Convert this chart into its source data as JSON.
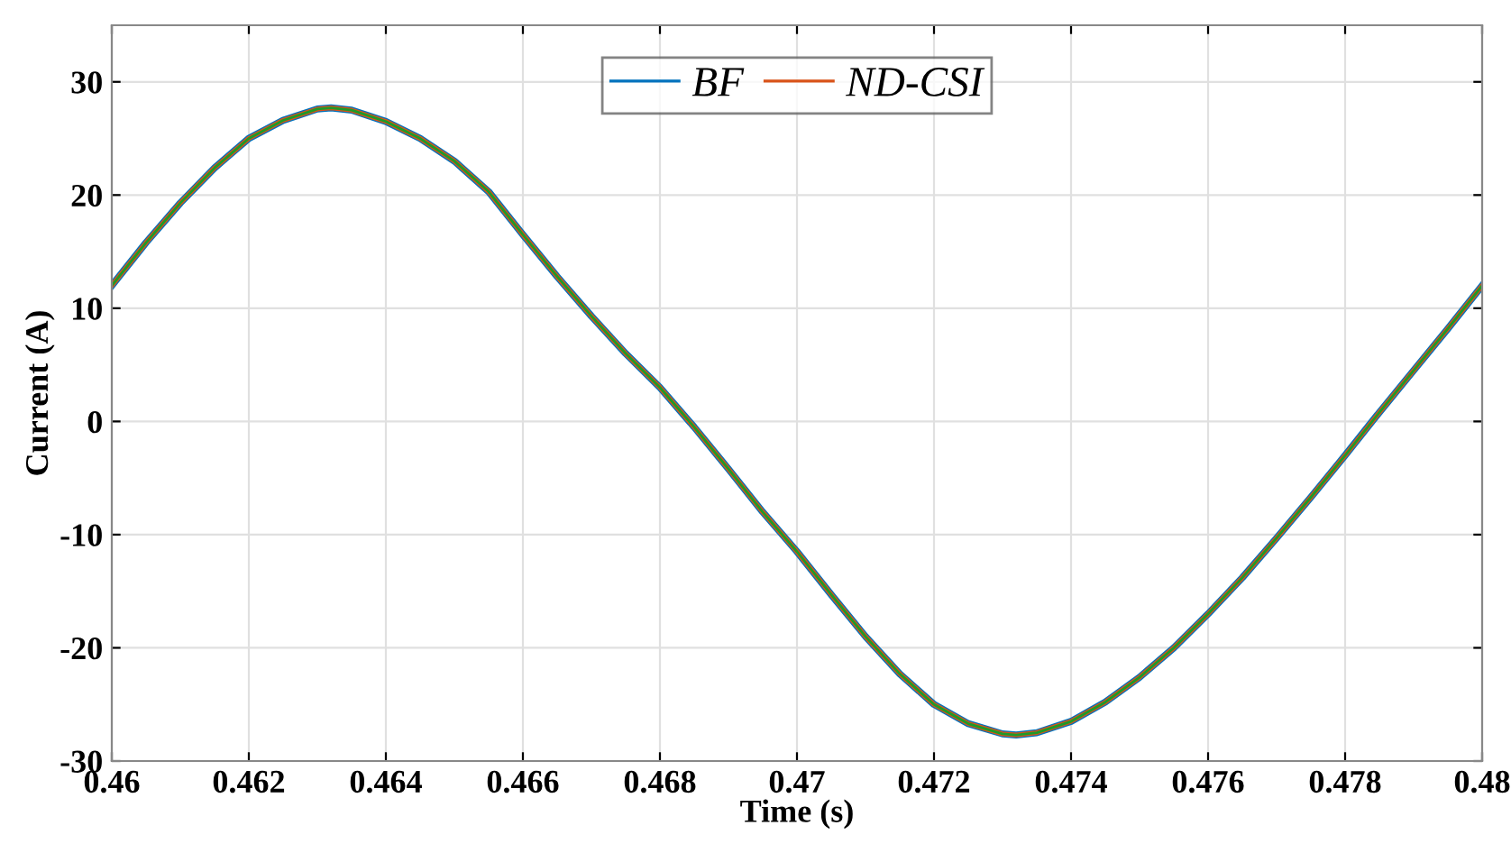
{
  "chart_data": {
    "type": "line",
    "xlabel": "Time (s)",
    "ylabel": "Current (A)",
    "xlim": [
      0.46,
      0.48
    ],
    "xticks": [
      0.46,
      0.462,
      0.464,
      0.466,
      0.468,
      0.47,
      0.472,
      0.474,
      0.476,
      0.478,
      0.48
    ],
    "ylim": [
      -30,
      35
    ],
    "yticks": [
      -30,
      -20,
      -10,
      0,
      10,
      20,
      30
    ],
    "grid": true,
    "legend": "top",
    "line_style": "solid",
    "marker": "none",
    "x": [
      0.46,
      0.4605,
      0.461,
      0.4615,
      0.462,
      0.4625,
      0.463,
      0.4632,
      0.4635,
      0.464,
      0.4645,
      0.465,
      0.4655,
      0.466,
      0.4665,
      0.467,
      0.4675,
      0.468,
      0.4685,
      0.469,
      0.4695,
      0.47,
      0.4705,
      0.471,
      0.4715,
      0.472,
      0.4725,
      0.473,
      0.4732,
      0.4735,
      0.474,
      0.4745,
      0.475,
      0.4755,
      0.476,
      0.4765,
      0.477,
      0.4775,
      0.478,
      0.4785,
      0.479,
      0.4795,
      0.48
    ],
    "series": [
      {
        "name": "BF",
        "color": "#0072bd",
        "values": [
          12.0,
          15.8,
          19.3,
          22.4,
          25.0,
          26.6,
          27.6,
          27.7,
          27.5,
          26.5,
          25.0,
          23.0,
          20.3,
          16.5,
          12.8,
          9.3,
          6.0,
          3.0,
          -0.5,
          -4.2,
          -8.0,
          -11.5,
          -15.3,
          -19.0,
          -22.3,
          -25.0,
          -26.7,
          -27.6,
          -27.7,
          -27.5,
          -26.5,
          -24.8,
          -22.6,
          -20.0,
          -17.0,
          -13.8,
          -10.3,
          -6.7,
          -3.0,
          0.8,
          4.5,
          8.2,
          12.0
        ]
      },
      {
        "name": "ND-CSI",
        "color": "#d95319",
        "values": [
          12.0,
          15.8,
          19.3,
          22.4,
          25.0,
          26.6,
          27.6,
          27.7,
          27.5,
          26.5,
          25.0,
          23.0,
          20.3,
          16.5,
          12.8,
          9.3,
          6.0,
          3.0,
          -0.5,
          -4.2,
          -8.0,
          -11.5,
          -15.3,
          -19.0,
          -22.3,
          -25.0,
          -26.7,
          -27.6,
          -27.7,
          -27.5,
          -26.5,
          -24.8,
          -22.6,
          -20.0,
          -17.0,
          -13.8,
          -10.3,
          -6.7,
          -3.0,
          0.8,
          4.5,
          8.2,
          12.0
        ]
      },
      {
        "color": "#1e9a28",
        "values": [
          12.0,
          15.8,
          19.3,
          22.4,
          25.0,
          26.6,
          27.6,
          27.7,
          27.5,
          26.5,
          25.0,
          23.0,
          20.3,
          16.5,
          12.8,
          9.3,
          6.0,
          3.0,
          -0.5,
          -4.2,
          -8.0,
          -11.5,
          -15.3,
          -19.0,
          -22.3,
          -25.0,
          -26.7,
          -27.6,
          -27.7,
          -27.5,
          -26.5,
          -24.8,
          -22.6,
          -20.0,
          -17.0,
          -13.8,
          -10.3,
          -6.7,
          -3.0,
          0.8,
          4.5,
          8.2,
          12.0
        ]
      }
    ]
  }
}
